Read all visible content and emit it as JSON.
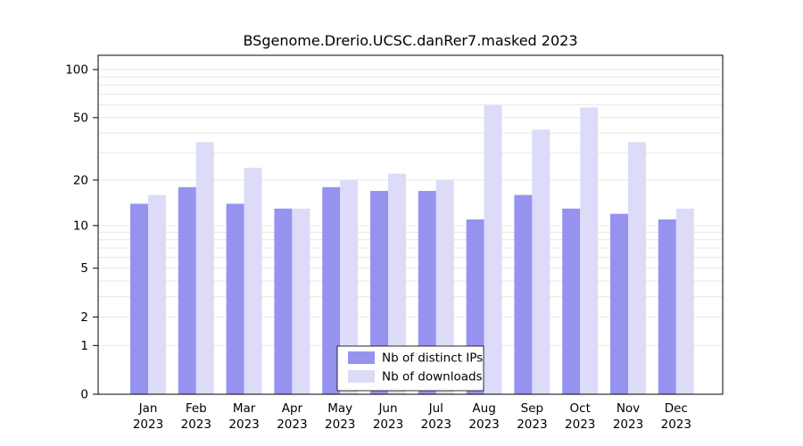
{
  "chart_data": {
    "type": "bar",
    "title": "BSgenome.Drerio.UCSC.danRer7.masked 2023",
    "categories": [
      "Jan",
      "Feb",
      "Mar",
      "Apr",
      "May",
      "Jun",
      "Jul",
      "Aug",
      "Sep",
      "Oct",
      "Nov",
      "Dec"
    ],
    "year_label": "2023",
    "series": [
      {
        "name": "Nb of distinct IPs",
        "color": "#9593ef",
        "values": [
          14,
          18,
          14,
          13,
          18,
          17,
          17,
          11,
          16,
          13,
          12,
          11
        ]
      },
      {
        "name": "Nb of downloads",
        "color": "#dcdcf9",
        "values": [
          16,
          35,
          24,
          13,
          20,
          22,
          20,
          60,
          42,
          58,
          35,
          13
        ]
      }
    ],
    "y_ticks": [
      0,
      1,
      2,
      5,
      10,
      20,
      50,
      100
    ],
    "y_scale": "log10(1+x)",
    "ylim": [
      0,
      100
    ],
    "gridlines": [
      1,
      2,
      3,
      4,
      5,
      6,
      7,
      8,
      9,
      10,
      20,
      30,
      40,
      50,
      60,
      70,
      80,
      90,
      100
    ],
    "grid_color": "#e7e7e7",
    "axis_color": "#000000",
    "legend": {
      "position": "bottom-center"
    }
  }
}
